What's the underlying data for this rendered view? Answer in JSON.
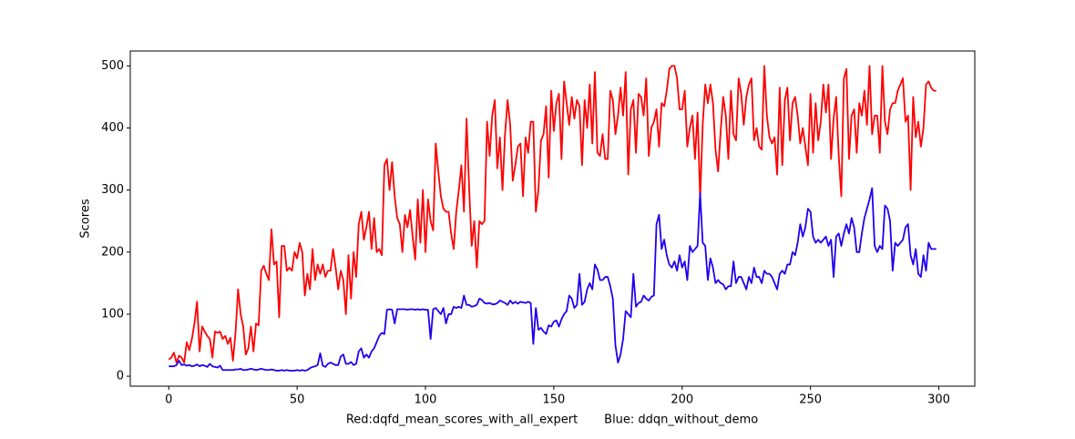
{
  "chart_data": {
    "type": "line",
    "xlabel": "Red:dqfd_mean_scores_with_all_expert       Blue: ddqn_without_demo",
    "ylabel": "Scores",
    "xlim": [
      -15,
      314
    ],
    "ylim": [
      -16,
      524
    ],
    "xticks": [
      0,
      50,
      100,
      150,
      200,
      250,
      300
    ],
    "yticks": [
      0,
      100,
      200,
      300,
      400,
      500
    ],
    "x": [
      0,
      1,
      2,
      3,
      4,
      5,
      6,
      7,
      8,
      9,
      10,
      11,
      12,
      13,
      14,
      15,
      16,
      17,
      18,
      19,
      20,
      21,
      22,
      23,
      24,
      25,
      26,
      27,
      28,
      29,
      30,
      31,
      32,
      33,
      34,
      35,
      36,
      37,
      38,
      39,
      40,
      41,
      42,
      43,
      44,
      45,
      46,
      47,
      48,
      49,
      50,
      51,
      52,
      53,
      54,
      55,
      56,
      57,
      58,
      59,
      60,
      61,
      62,
      63,
      64,
      65,
      66,
      67,
      68,
      69,
      70,
      71,
      72,
      73,
      74,
      75,
      76,
      77,
      78,
      79,
      80,
      81,
      82,
      83,
      84,
      85,
      86,
      87,
      88,
      89,
      90,
      91,
      92,
      93,
      94,
      95,
      96,
      97,
      98,
      99,
      100,
      101,
      102,
      103,
      104,
      105,
      106,
      107,
      108,
      109,
      110,
      111,
      112,
      113,
      114,
      115,
      116,
      117,
      118,
      119,
      120,
      121,
      122,
      123,
      124,
      125,
      126,
      127,
      128,
      129,
      130,
      131,
      132,
      133,
      134,
      135,
      136,
      137,
      138,
      139,
      140,
      141,
      142,
      143,
      144,
      145,
      146,
      147,
      148,
      149,
      150,
      151,
      152,
      153,
      154,
      155,
      156,
      157,
      158,
      159,
      160,
      161,
      162,
      163,
      164,
      165,
      166,
      167,
      168,
      169,
      170,
      171,
      172,
      173,
      174,
      175,
      176,
      177,
      178,
      179,
      180,
      181,
      182,
      183,
      184,
      185,
      186,
      187,
      188,
      189,
      190,
      191,
      192,
      193,
      194,
      195,
      196,
      197,
      198,
      199,
      200,
      201,
      202,
      203,
      204,
      205,
      206,
      207,
      208,
      209,
      210,
      211,
      212,
      213,
      214,
      215,
      216,
      217,
      218,
      219,
      220,
      221,
      222,
      223,
      224,
      225,
      226,
      227,
      228,
      229,
      230,
      231,
      232,
      233,
      234,
      235,
      236,
      237,
      238,
      239,
      240,
      241,
      242,
      243,
      244,
      245,
      246,
      247,
      248,
      249,
      250,
      251,
      252,
      253,
      254,
      255,
      256,
      257,
      258,
      259,
      260,
      261,
      262,
      263,
      264,
      265,
      266,
      267,
      268,
      269,
      270,
      271,
      272,
      273,
      274,
      275,
      276,
      277,
      278,
      279,
      280,
      281,
      282,
      283,
      284,
      285,
      286,
      287,
      288,
      289,
      290,
      291,
      292,
      293,
      294,
      295,
      296,
      297,
      298,
      299
    ],
    "series": [
      {
        "color": "#ff0000",
        "values": [
          27,
          30,
          38,
          22,
          33,
          30,
          22,
          55,
          42,
          60,
          85,
          120,
          40,
          80,
          72,
          65,
          60,
          30,
          72,
          70,
          72,
          60,
          65,
          52,
          62,
          25,
          70,
          140,
          100,
          80,
          35,
          45,
          80,
          40,
          85,
          82,
          170,
          178,
          165,
          155,
          237,
          180,
          185,
          95,
          210,
          210,
          170,
          175,
          170,
          200,
          190,
          215,
          200,
          130,
          165,
          140,
          205,
          155,
          180,
          165,
          180,
          160,
          170,
          170,
          205,
          175,
          140,
          170,
          155,
          100,
          195,
          125,
          200,
          160,
          245,
          265,
          220,
          240,
          265,
          205,
          255,
          200,
          205,
          195,
          340,
          350,
          300,
          345,
          290,
          255,
          245,
          200,
          260,
          240,
          268,
          225,
          188,
          285,
          215,
          300,
          200,
          285,
          250,
          235,
          375,
          330,
          290,
          270,
          265,
          265,
          230,
          205,
          265,
          300,
          340,
          265,
          415,
          305,
          210,
          250,
          175,
          250,
          245,
          250,
          410,
          355,
          420,
          445,
          335,
          385,
          300,
          390,
          445,
          405,
          315,
          340,
          370,
          375,
          290,
          385,
          360,
          410,
          410,
          265,
          300,
          380,
          390,
          435,
          320,
          460,
          395,
          440,
          455,
          350,
          475,
          440,
          405,
          450,
          415,
          445,
          435,
          340,
          445,
          400,
          470,
          375,
          490,
          360,
          355,
          390,
          350,
          350,
          460,
          445,
          390,
          420,
          465,
          420,
          490,
          325,
          430,
          445,
          360,
          455,
          450,
          420,
          480,
          355,
          400,
          410,
          430,
          370,
          440,
          435,
          460,
          495,
          500,
          500,
          480,
          430,
          430,
          460,
          370,
          400,
          420,
          350,
          425,
          285,
          405,
          470,
          440,
          470,
          440,
          365,
          330,
          395,
          450,
          420,
          350,
          460,
          390,
          380,
          480,
          455,
          405,
          450,
          470,
          480,
          380,
          400,
          370,
          365,
          500,
          420,
          385,
          375,
          385,
          325,
          465,
          340,
          445,
          465,
          380,
          440,
          450,
          420,
          375,
          400,
          370,
          340,
          455,
          360,
          440,
          380,
          410,
          470,
          425,
          470,
          350,
          415,
          450,
          355,
          290,
          480,
          495,
          350,
          420,
          430,
          360,
          440,
          420,
          460,
          405,
          500,
          390,
          420,
          420,
          360,
          500,
          410,
          390,
          430,
          440,
          440,
          460,
          470,
          480,
          410,
          420,
          300,
          450,
          385,
          410,
          370,
          400,
          470,
          475,
          465,
          460,
          460
        ]
      },
      {
        "color": "#2000f0",
        "values": [
          16,
          16,
          16,
          18,
          25,
          18,
          19,
          17,
          18,
          16,
          17,
          19,
          16,
          18,
          17,
          15,
          20,
          16,
          15,
          14,
          17,
          10,
          10,
          10,
          10,
          10,
          11,
          11,
          12,
          10,
          10,
          11,
          12,
          11,
          10,
          11,
          12,
          11,
          10,
          10,
          11,
          10,
          9,
          9,
          10,
          9,
          10,
          9,
          9,
          9,
          10,
          9,
          10,
          9,
          10,
          13,
          15,
          16,
          18,
          37,
          17,
          15,
          20,
          22,
          20,
          18,
          18,
          32,
          35,
          20,
          20,
          23,
          18,
          20,
          40,
          45,
          30,
          35,
          30,
          40,
          45,
          55,
          65,
          70,
          68,
          107,
          108,
          107,
          85,
          108,
          108,
          108,
          108,
          107,
          108,
          108,
          107,
          108,
          107,
          108,
          107,
          107,
          60,
          108,
          110,
          105,
          100,
          110,
          85,
          100,
          100,
          112,
          110,
          112,
          110,
          130,
          115,
          115,
          112,
          113,
          115,
          125,
          123,
          118,
          117,
          118,
          116,
          116,
          118,
          122,
          120,
          118,
          115,
          122,
          117,
          120,
          117,
          120,
          119,
          118,
          120,
          118,
          52,
          110,
          75,
          78,
          72,
          68,
          82,
          80,
          88,
          90,
          80,
          92,
          100,
          105,
          130,
          125,
          110,
          115,
          165,
          115,
          120,
          140,
          150,
          140,
          180,
          172,
          155,
          155,
          160,
          160,
          145,
          125,
          50,
          22,
          35,
          60,
          105,
          100,
          95,
          165,
          112,
          118,
          120,
          130,
          125,
          122,
          128,
          130,
          245,
          260,
          205,
          220,
          195,
          180,
          175,
          185,
          170,
          195,
          175,
          185,
          155,
          210,
          200,
          205,
          210,
          295,
          215,
          210,
          155,
          190,
          175,
          150,
          155,
          150,
          148,
          140,
          145,
          145,
          185,
          150,
          160,
          160,
          150,
          140,
          160,
          150,
          175,
          160,
          160,
          150,
          170,
          165,
          165,
          160,
          150,
          140,
          165,
          170,
          165,
          180,
          180,
          200,
          195,
          215,
          245,
          225,
          240,
          270,
          265,
          225,
          215,
          220,
          215,
          220,
          225,
          210,
          220,
          160,
          225,
          230,
          210,
          230,
          245,
          230,
          255,
          240,
          200,
          200,
          230,
          255,
          270,
          285,
          303,
          210,
          200,
          210,
          205,
          275,
          270,
          250,
          170,
          215,
          210,
          215,
          220,
          240,
          245,
          195,
          180,
          205,
          165,
          160,
          195,
          170,
          215,
          205,
          205,
          205
        ]
      }
    ]
  }
}
